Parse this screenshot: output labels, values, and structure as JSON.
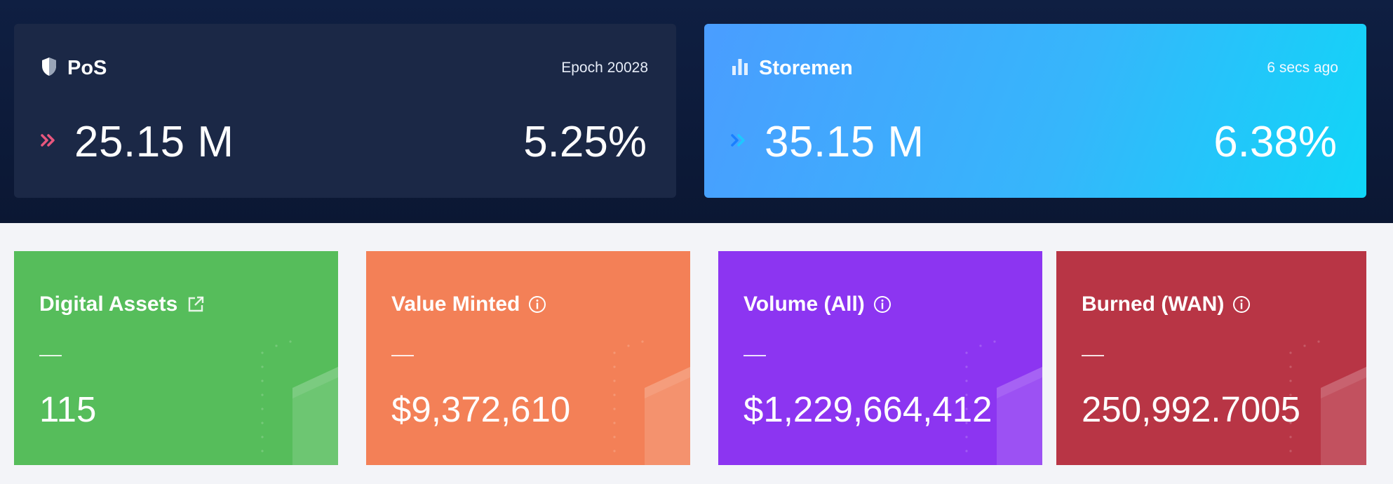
{
  "pos": {
    "title": "PoS",
    "meta": "Epoch 20028",
    "value": "25.15 M",
    "percent": "5.25%",
    "icon": "shield-icon",
    "arrow_color": "#e8577e"
  },
  "storemen": {
    "title": "Storemen",
    "meta": "6 secs ago",
    "value": "35.15 M",
    "percent": "6.38%",
    "icon": "bar-chart-icon",
    "arrow_color": "#1a7fff"
  },
  "metrics": [
    {
      "title": "Digital Assets",
      "icon": "external-link-icon",
      "value": "115",
      "color": "#56bd5b"
    },
    {
      "title": "Value Minted",
      "icon": "info-icon",
      "value": "$9,372,610",
      "color": "#f38057"
    },
    {
      "title": "Volume (All)",
      "icon": "info-icon",
      "value": "$1,229,664,412",
      "color": "#8c35f1"
    },
    {
      "title": "Burned (WAN)",
      "icon": "info-icon",
      "value": "250,992.7005",
      "color": "#b83545"
    }
  ]
}
